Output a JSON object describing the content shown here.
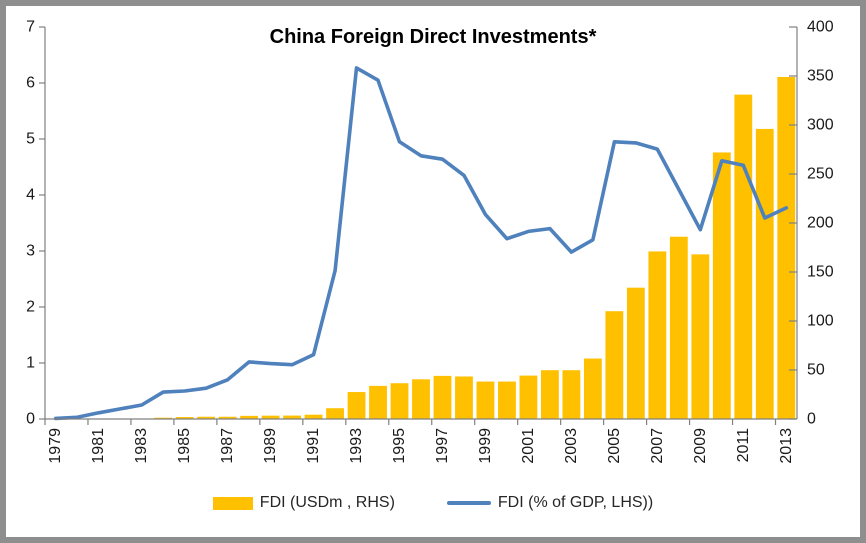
{
  "title": "China Foreign Direct Investments*",
  "legend": {
    "items": [
      {
        "label": "FDI (USDm , RHS)",
        "swatch": "bar",
        "color": "#FFC000"
      },
      {
        "label": "FDI (% of GDP, LHS))",
        "swatch": "line",
        "color": "#4F81BD"
      }
    ],
    "position": "bottom"
  },
  "colors": {
    "bar": "#FFC000",
    "line": "#4F81BD",
    "axis": "#808080",
    "tick_text": "#1a1a1a",
    "frame_border": "#8e8e8e"
  },
  "chart_data": {
    "type": "combo bar+line, dual axis",
    "title": "China Foreign Direct Investments*",
    "grid": false,
    "legend_position": "bottom",
    "categories": [
      1979,
      1980,
      1981,
      1982,
      1983,
      1984,
      1985,
      1986,
      1987,
      1988,
      1989,
      1990,
      1991,
      1992,
      1993,
      1994,
      1995,
      1996,
      1997,
      1998,
      1999,
      2000,
      2001,
      2002,
      2003,
      2004,
      2005,
      2006,
      2007,
      2008,
      2009,
      2010,
      2011,
      2012,
      2013
    ],
    "x_axis": {
      "tick_labels": [
        "1979",
        "1981",
        "1983",
        "1985",
        "1987",
        "1989",
        "1991",
        "1993",
        "1995",
        "1997",
        "1999",
        "2001",
        "2003",
        "2005",
        "2007",
        "2009",
        "2011",
        "2013"
      ],
      "label_rotation_deg": 90
    },
    "left_axis": {
      "min": 0,
      "max": 7,
      "step": 1,
      "ticks": [
        0,
        1,
        2,
        3,
        4,
        5,
        6,
        7
      ],
      "used_by": "FDI (% of GDP, LHS))"
    },
    "right_axis": {
      "min": 0,
      "max": 400,
      "step": 50,
      "ticks": [
        0,
        50,
        100,
        150,
        200,
        250,
        300,
        350,
        400
      ],
      "used_by": "FDI (USDm , RHS)"
    },
    "series": [
      {
        "name": "FDI (USDm , RHS)",
        "type": "bar",
        "axis": "right",
        "color": "#FFC000",
        "values": [
          0,
          0,
          0.3,
          0.4,
          0.6,
          1.3,
          2,
          2.3,
          2.3,
          3.2,
          3.4,
          3.5,
          4.4,
          11,
          27.5,
          33.8,
          36.5,
          40.5,
          44,
          43.4,
          38.2,
          38.2,
          44.3,
          49.8,
          49.8,
          61.7,
          110,
          134,
          171,
          186,
          168,
          272,
          331,
          296,
          349
        ]
      },
      {
        "name": "FDI (% of GDP, LHS))",
        "type": "line",
        "axis": "left",
        "color": "#4F81BD",
        "values": [
          0.01,
          0.03,
          0.11,
          0.18,
          0.25,
          0.48,
          0.5,
          0.55,
          0.7,
          1.02,
          0.99,
          0.97,
          1.15,
          2.65,
          6.27,
          6.05,
          4.95,
          4.7,
          4.64,
          4.35,
          3.65,
          3.22,
          3.35,
          3.4,
          2.98,
          3.2,
          4.95,
          4.93,
          4.82,
          4.1,
          3.38,
          4.61,
          4.53,
          3.59,
          3.77
        ]
      }
    ]
  }
}
